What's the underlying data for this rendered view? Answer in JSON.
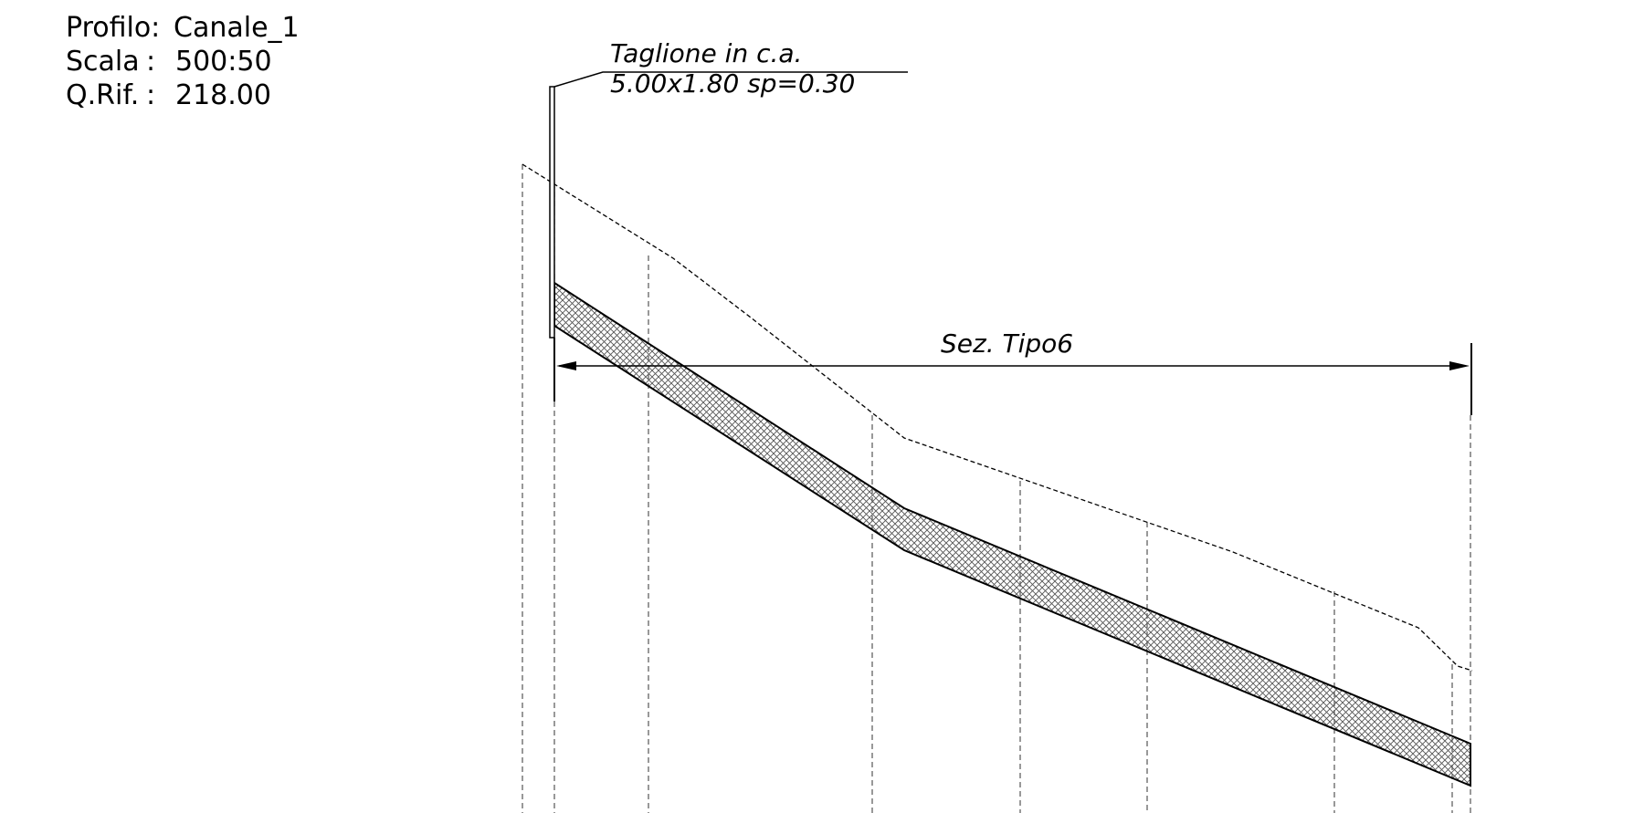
{
  "header": {
    "profilo_label": "Profilo:",
    "profilo_value": "Canale_1",
    "scala_label": "Scala",
    "scala_sep": ":",
    "scala_value": "500:50",
    "qrif_label": "Q.Rif.",
    "qrif_sep": ":",
    "qrif_value": "218.00"
  },
  "annotations": {
    "taglione_line1": "Taglione in c.a.",
    "taglione_line2": "5.00x1.80 sp=0.30",
    "section_label": "Sez. Tipo6"
  },
  "colors": {
    "line": "#000000",
    "hatch": "#555555"
  }
}
